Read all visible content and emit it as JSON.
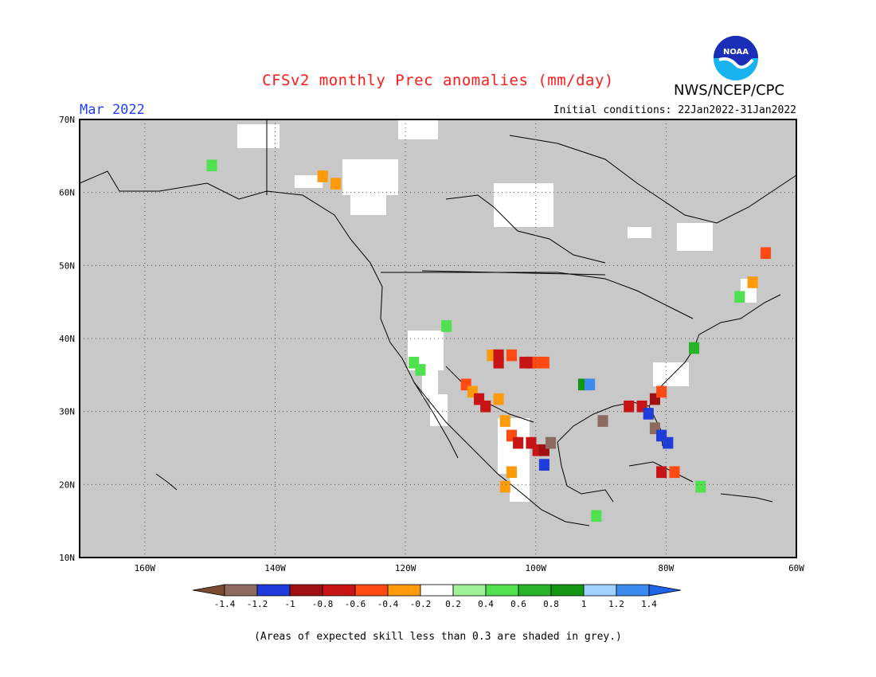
{
  "title": "CFSv2 monthly Prec anomalies (mm/day)",
  "agency": "NWS/NCEP/CPC",
  "logo_text": "NOAA",
  "month": "Mar 2022",
  "initial_conditions": "Initial conditions: 22Jan2022-31Jan2022",
  "footnote": "(Areas of expected skill less than 0.3 are shaded in grey.)",
  "map": {
    "lon_range": [
      -170,
      -60
    ],
    "lat_range": [
      10,
      70
    ],
    "lat_ticks": [
      {
        "value": 70,
        "label": "70N"
      },
      {
        "value": 60,
        "label": "60N"
      },
      {
        "value": 50,
        "label": "50N"
      },
      {
        "value": 40,
        "label": "40N"
      },
      {
        "value": 30,
        "label": "30N"
      },
      {
        "value": 20,
        "label": "20N"
      },
      {
        "value": 10,
        "label": "10N"
      }
    ],
    "lon_ticks": [
      {
        "value": -160,
        "label": "160W"
      },
      {
        "value": -140,
        "label": "140W"
      },
      {
        "value": -120,
        "label": "120W"
      },
      {
        "value": -100,
        "label": "100W"
      },
      {
        "value": -80,
        "label": "80W"
      },
      {
        "value": -60,
        "label": "60W"
      }
    ],
    "low_skill_color": "#c8c8c8",
    "gridline_style": "dotted"
  },
  "colorbar": {
    "labels": [
      "-1.4",
      "-1.2",
      "-1",
      "-0.8",
      "-0.6",
      "-0.4",
      "-0.2",
      "0.2",
      "0.4",
      "0.6",
      "0.8",
      "1",
      "1.2",
      "1.4"
    ],
    "colors": [
      "#7a4a2e",
      "#8c6a5e",
      "#1e3cdc",
      "#a01010",
      "#c81414",
      "#ff4a14",
      "#ff9a0a",
      "#ffffff",
      "#a0f09a",
      "#50e050",
      "#28b428",
      "#129612",
      "#a0d2ff",
      "#3c8cf0",
      "#1e64e6"
    ]
  },
  "anomaly_cells": [
    {
      "lon": -150,
      "lat": 64,
      "value": 0.4
    },
    {
      "lon": -133,
      "lat": 62.5,
      "value": -0.4
    },
    {
      "lon": -131,
      "lat": 61.5,
      "value": -0.4
    },
    {
      "lon": -114,
      "lat": 42,
      "value": 0.4
    },
    {
      "lon": -119,
      "lat": 37,
      "value": 0.4
    },
    {
      "lon": -118,
      "lat": 36,
      "value": 0.4
    },
    {
      "lon": -107,
      "lat": 38,
      "value": -0.4
    },
    {
      "lon": -106,
      "lat": 38,
      "value": -0.8
    },
    {
      "lon": -106,
      "lat": 37,
      "value": -0.8
    },
    {
      "lon": -104,
      "lat": 38,
      "value": -0.6
    },
    {
      "lon": -102,
      "lat": 37,
      "value": -0.8
    },
    {
      "lon": -101,
      "lat": 37,
      "value": -0.8
    },
    {
      "lon": -100,
      "lat": 37,
      "value": -0.6
    },
    {
      "lon": -99,
      "lat": 37,
      "value": -0.6
    },
    {
      "lon": -111,
      "lat": 34,
      "value": -0.6
    },
    {
      "lon": -110,
      "lat": 33,
      "value": -0.4
    },
    {
      "lon": -109,
      "lat": 32,
      "value": -0.8
    },
    {
      "lon": -108,
      "lat": 31,
      "value": -0.8
    },
    {
      "lon": -106,
      "lat": 32,
      "value": -0.4
    },
    {
      "lon": -105,
      "lat": 29,
      "value": -0.4
    },
    {
      "lon": -104,
      "lat": 27,
      "value": -0.6
    },
    {
      "lon": -103,
      "lat": 26,
      "value": -0.8
    },
    {
      "lon": -101,
      "lat": 26,
      "value": -0.8
    },
    {
      "lon": -100,
      "lat": 25,
      "value": -0.8
    },
    {
      "lon": -99,
      "lat": 25,
      "value": -1.0
    },
    {
      "lon": -99,
      "lat": 23,
      "value": -1.2
    },
    {
      "lon": -98,
      "lat": 26,
      "value": -1.4
    },
    {
      "lon": -104,
      "lat": 22,
      "value": -0.4
    },
    {
      "lon": -105,
      "lat": 20,
      "value": -0.4
    },
    {
      "lon": -93,
      "lat": 34,
      "value": 0.8
    },
    {
      "lon": -92,
      "lat": 34,
      "value": 1.2
    },
    {
      "lon": -90,
      "lat": 29,
      "value": -1.4
    },
    {
      "lon": -86,
      "lat": 31,
      "value": -0.8
    },
    {
      "lon": -84,
      "lat": 31,
      "value": -0.8
    },
    {
      "lon": -82,
      "lat": 32,
      "value": -1.0
    },
    {
      "lon": -81,
      "lat": 33,
      "value": -0.6
    },
    {
      "lon": -83,
      "lat": 30,
      "value": -1.2
    },
    {
      "lon": -82,
      "lat": 28,
      "value": -1.4
    },
    {
      "lon": -81,
      "lat": 27,
      "value": -1.2
    },
    {
      "lon": -80,
      "lat": 26,
      "value": -1.2
    },
    {
      "lon": -81,
      "lat": 22,
      "value": -0.8
    },
    {
      "lon": -79,
      "lat": 22,
      "value": -0.6
    },
    {
      "lon": -75,
      "lat": 20,
      "value": 0.4
    },
    {
      "lon": -91,
      "lat": 16,
      "value": 0.4
    },
    {
      "lon": -76,
      "lat": 39,
      "value": 0.6
    },
    {
      "lon": -65,
      "lat": 52,
      "value": -0.6
    },
    {
      "lon": -67,
      "lat": 48,
      "value": -0.4
    },
    {
      "lon": -69,
      "lat": 46,
      "value": 0.4
    }
  ]
}
